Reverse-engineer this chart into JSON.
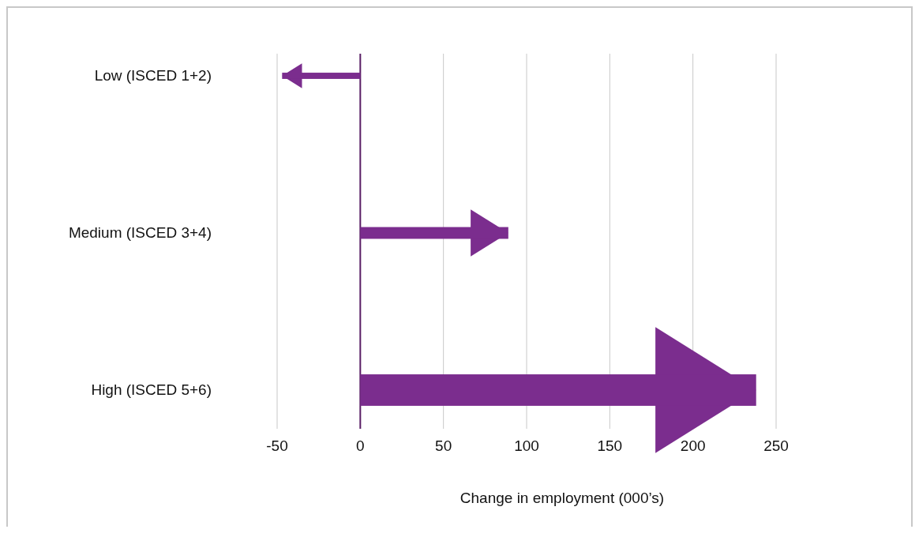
{
  "chart_data": {
    "type": "bar",
    "orientation": "horizontal",
    "xlabel": "Change in employment (000’s)",
    "categories": [
      "Low (ISCED 1+2)",
      "Medium (ISCED 3+4)",
      "High (ISCED 5+6)"
    ],
    "values": [
      -47,
      89,
      238
    ],
    "color": "#7b2d8e",
    "xlim": [
      -50,
      250
    ],
    "xticks": [
      -50,
      0,
      50,
      100,
      150,
      200,
      250
    ],
    "grid": "x",
    "ref_lines": [
      {
        "axis": "x",
        "value": 0,
        "color": "#5a1f66"
      }
    ]
  }
}
